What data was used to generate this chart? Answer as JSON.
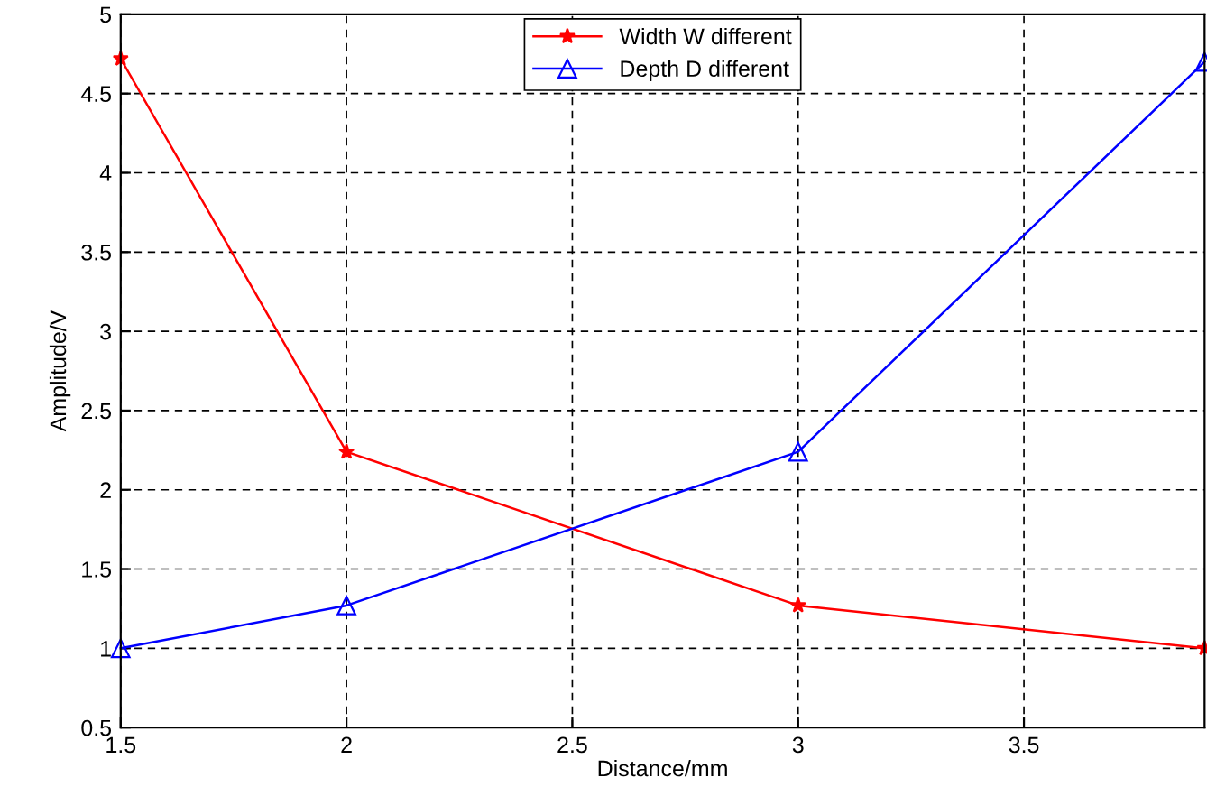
{
  "chart_data": {
    "type": "line",
    "xlabel": "Distance/mm",
    "ylabel": "Amplitude/V",
    "x": [
      1.5,
      2,
      3,
      3.9
    ],
    "series": [
      {
        "name": "Width W different",
        "color": "#ff0000",
        "marker": "star",
        "values": [
          4.72,
          2.24,
          1.27,
          1.0
        ]
      },
      {
        "name": "Depth D different",
        "color": "#0000ff",
        "marker": "triangle",
        "values": [
          1.0,
          1.27,
          2.24,
          4.7
        ]
      }
    ],
    "xlim": [
      1.5,
      3.9
    ],
    "xticks": [
      1.5,
      2,
      2.5,
      3,
      3.5
    ],
    "ylim": [
      0.5,
      5
    ],
    "yticks": [
      0.5,
      1,
      1.5,
      2,
      2.5,
      3,
      3.5,
      4,
      4.5,
      5
    ],
    "grid": true,
    "legend": "top",
    "line_style": "solid"
  }
}
